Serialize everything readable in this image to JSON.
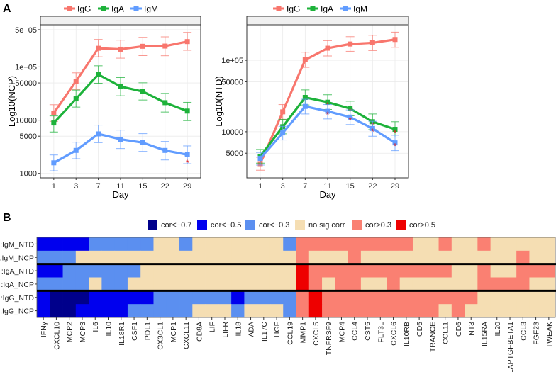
{
  "panel_labels": {
    "a": "A",
    "b": "B"
  },
  "colors": {
    "IgG": "#F8766D",
    "IgA": "#1DB23A",
    "IgM": "#619CFF",
    "star": "#E41A1C",
    "heat": {
      "a": "#00008B",
      "b": "#0000EE",
      "c": "#5B8FF0",
      "n": "#F5DEB3",
      "p": "#FA8072",
      "r": "#EE0000"
    }
  },
  "chart_data": [
    {
      "type": "line",
      "title": "",
      "xlabel": "Day",
      "ylabel": "Log10(NCP)",
      "y_scale": "log",
      "ylim": [
        825,
        618000
      ],
      "yticks": [
        1000,
        5000,
        10000,
        50000,
        100000,
        500000
      ],
      "ytick_labels": [
        "1000",
        "5000",
        "10000",
        "50000",
        "1e+05",
        "5e+05"
      ],
      "categories": [
        "1",
        "3",
        "7",
        "11",
        "15",
        "22",
        "29"
      ],
      "legend": "top",
      "grid": true,
      "series": [
        {
          "name": "IgG",
          "values": [
            13600,
            54000,
            224000,
            215000,
            244000,
            246000,
            299000
          ],
          "upper": [
            19500,
            77400,
            328000,
            318000,
            359000,
            367000,
            445000
          ],
          "lower": [
            9500,
            37800,
            155000,
            146000,
            163000,
            162000,
            205000
          ],
          "significant": [
            false,
            false,
            false,
            false,
            false,
            false,
            false
          ]
        },
        {
          "name": "IgA",
          "values": [
            8850,
            25100,
            72100,
            42800,
            34500,
            21300,
            14800
          ],
          "upper": [
            12000,
            36700,
            105000,
            63100,
            50300,
            31800,
            21600
          ],
          "lower": [
            6000,
            17600,
            49300,
            28700,
            23900,
            14200,
            9800
          ],
          "significant": [
            false,
            false,
            false,
            false,
            false,
            false,
            false
          ]
        },
        {
          "name": "IgM",
          "values": [
            1580,
            2700,
            5520,
            4370,
            3780,
            2700,
            2240
          ],
          "upper": [
            2220,
            3860,
            8070,
            6500,
            5580,
            3980,
            3280
          ],
          "lower": [
            1120,
            1890,
            3780,
            2930,
            2590,
            1790,
            1520
          ],
          "significant": [
            false,
            false,
            false,
            false,
            false,
            false,
            true
          ]
        }
      ],
      "annotation": "*"
    },
    {
      "type": "line",
      "title": "",
      "xlabel": "Day",
      "ylabel": "Log10(NTD)",
      "y_scale": "log",
      "ylim": [
        2260,
        314000
      ],
      "yticks": [
        5000,
        10000,
        50000,
        100000
      ],
      "ytick_labels": [
        "5000",
        "10000",
        "50000",
        "1e+05"
      ],
      "categories": [
        "1",
        "3",
        "7",
        "11",
        "15",
        "22",
        "29"
      ],
      "legend": "top",
      "grid": true,
      "series": [
        {
          "name": "IgG",
          "values": [
            3570,
            18970,
            101600,
            147600,
            169000,
            175700,
            195500
          ],
          "upper": [
            4390,
            24000,
            129700,
            188400,
            214000,
            224000,
            247700
          ],
          "lower": [
            2890,
            14900,
            79600,
            114900,
            133600,
            136800,
            152000
          ],
          "significant": [
            false,
            false,
            false,
            false,
            false,
            false,
            false
          ]
        },
        {
          "name": "IgA",
          "values": [
            4530,
            11740,
            30200,
            25900,
            21100,
            13800,
            10800
          ],
          "upper": [
            5650,
            14900,
            38500,
            32900,
            26700,
            17700,
            13800
          ],
          "lower": [
            3630,
            9340,
            23700,
            20500,
            16700,
            10700,
            8400
          ],
          "significant": [
            false,
            false,
            false,
            true,
            true,
            true,
            true
          ]
        },
        {
          "name": "IgM",
          "values": [
            4230,
            9620,
            22600,
            19300,
            16000,
            11100,
            6980
          ],
          "upper": [
            5120,
            11900,
            28500,
            24000,
            20200,
            14000,
            8920
          ],
          "lower": [
            3410,
            7660,
            17700,
            15100,
            12600,
            8650,
            5430
          ],
          "significant": [
            false,
            false,
            false,
            true,
            true,
            true,
            true
          ]
        }
      ],
      "annotation": "*"
    },
    {
      "type": "heatmap",
      "title": "",
      "legend": "top",
      "legend_entries": [
        {
          "code": "a",
          "label": "cor<−0.7"
        },
        {
          "code": "b",
          "label": "cor<−0.5"
        },
        {
          "code": "c",
          "label": "cor<−0.3"
        },
        {
          "code": "n",
          "label": "no sig corr"
        },
        {
          "code": "p",
          "label": "cor>0.3"
        },
        {
          "code": "r",
          "label": "cor>0.5"
        }
      ],
      "rows": [
        ":IgM_NTD",
        ":IgM_NCP",
        ":IgA_NTD",
        ":IgA_NCP",
        ":IgG_NTD",
        ":IgG_NCP"
      ],
      "columns": [
        "IFNγ",
        "CXCL10",
        "MCP2",
        "MCP3",
        "IL6",
        "IL10",
        "IL18R1",
        "CSF1",
        "PDL1",
        "CX3CL1",
        "MCP1",
        "CXCL11",
        "CD8A",
        "LIF",
        "LIFR",
        "IL18",
        "ADA",
        "IL17C",
        "HGF",
        "CCL19",
        "MMP1",
        "CXCL5",
        "TNFRSF9",
        "MCP4",
        "CCL4",
        "CST5",
        "FLT3L",
        "CXCL6",
        "IL10RB",
        "CD5",
        "TRANCE",
        "CCL11",
        "CD6",
        "NT3",
        "IL15RA",
        "IL20",
        "LAPTGFBETA1",
        "CCL3",
        "FGF23",
        "TWEAK"
      ],
      "values": [
        "bbbbcccccnncnnnnnnncpppppppppnnpnnpnnnnn",
        "cccnnnnnnnnnnnnnnnnnpnnnpnnnnnnnnnnnnpnn",
        "bbccccccnnnnnnnnnnnnrpppppppppppnnpnnppp",
        "ccccnccnnnnnnnnnnnnnrpnppnnpnnnnnnppppnn",
        "baaabbbbbccccccbccccprppppppppppppnnnnnn",
        "baabbbbcccccnnncnnncprpppppppppnpnnnnnnn"
      ],
      "group_separators_after_rows": [
        2,
        4
      ]
    }
  ]
}
